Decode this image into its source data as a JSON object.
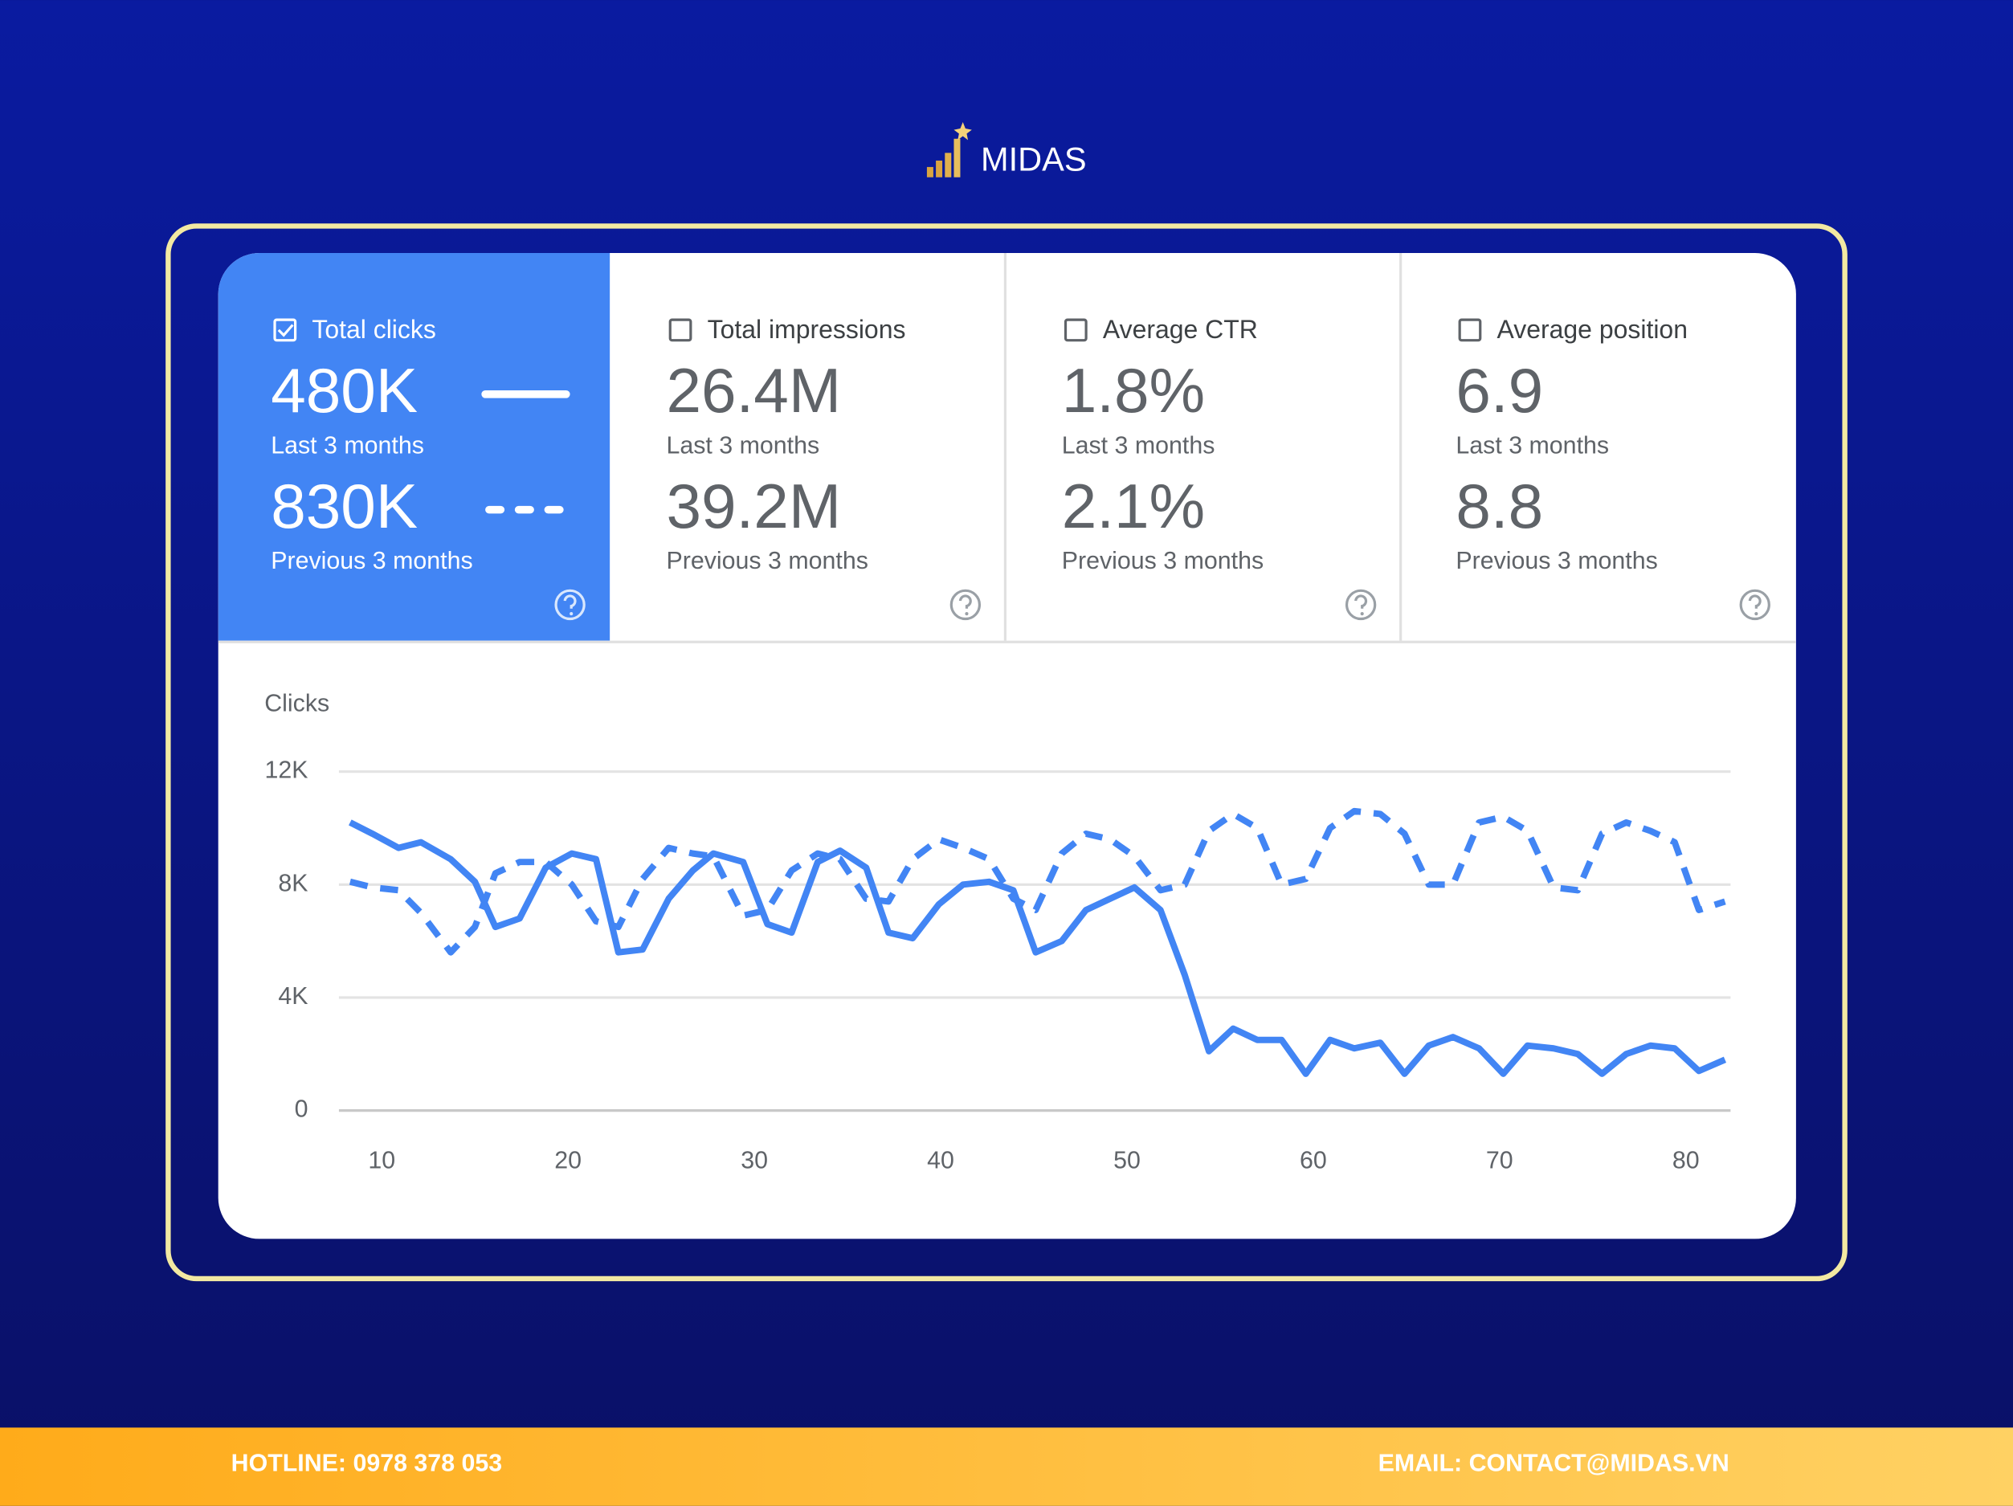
{
  "brand": "MIDAS",
  "cards": [
    {
      "label": "Total clicks",
      "checked": true,
      "current": "480K",
      "current_period": "Last 3 months",
      "previous": "830K",
      "previous_period": "Previous 3 months"
    },
    {
      "label": "Total impressions",
      "checked": false,
      "current": "26.4M",
      "current_period": "Last 3 months",
      "previous": "39.2M",
      "previous_period": "Previous 3 months"
    },
    {
      "label": "Average CTR",
      "checked": false,
      "current": "1.8%",
      "current_period": "Last 3 months",
      "previous": "2.1%",
      "previous_period": "Previous 3 months"
    },
    {
      "label": "Average position",
      "checked": false,
      "current": "6.9",
      "current_period": "Last 3 months",
      "previous": "8.8",
      "previous_period": "Previous 3 months"
    }
  ],
  "chart_data": {
    "type": "line",
    "y_label": "Clicks",
    "x": [
      8.3,
      9.5,
      10.9,
      12.1,
      13.7,
      15.0,
      16.1,
      17.4,
      18.8,
      20.2,
      21.5,
      22.7,
      24.0,
      25.4,
      26.7,
      27.8,
      29.4,
      30.7,
      32.0,
      33.4,
      34.6,
      36.0,
      37.2,
      38.5,
      39.9,
      41.2,
      42.6,
      43.9,
      45.1,
      46.5,
      47.8,
      49.1,
      50.4,
      51.8,
      53.1,
      54.4,
      55.7,
      57.0,
      58.3,
      59.6,
      60.9,
      62.2,
      63.6,
      64.9,
      66.2,
      67.5,
      68.9,
      70.2,
      71.5,
      72.9,
      74.2,
      75.5,
      76.8,
      78.1,
      79.4,
      80.7,
      82.1
    ],
    "series": [
      {
        "color": "#4285f4",
        "dashed": false,
        "values": [
          10200,
          9800,
          9300,
          9500,
          8900,
          8100,
          6500,
          6800,
          8600,
          9100,
          8900,
          5600,
          5700,
          7500,
          8500,
          9100,
          8800,
          6600,
          6300,
          8800,
          9200,
          8600,
          6300,
          6100,
          7300,
          8000,
          8100,
          7800,
          5600,
          6000,
          7100,
          7500,
          7900,
          7100,
          4800,
          2100,
          2900,
          2500,
          2500,
          1300,
          2500,
          2200,
          2400,
          1300,
          2300,
          2600,
          2200,
          1300,
          2300,
          2200,
          2000,
          1300,
          2000,
          2300,
          2200,
          1400,
          1800
        ]
      },
      {
        "color": "#4285f4",
        "dashed": true,
        "values": [
          8100,
          7900,
          7800,
          7000,
          5600,
          6500,
          8400,
          8800,
          8800,
          8000,
          6700,
          6500,
          8200,
          9300,
          9100,
          9000,
          6900,
          7100,
          8500,
          9100,
          8900,
          7500,
          7400,
          8900,
          9600,
          9300,
          8900,
          7500,
          7100,
          9100,
          9800,
          9600,
          9000,
          7800,
          8000,
          9900,
          10500,
          10000,
          8000,
          8200,
          10000,
          10600,
          10500,
          9800,
          8000,
          8000,
          10200,
          10400,
          9900,
          7900,
          7800,
          9800,
          10200,
          9900,
          9500,
          7100,
          7400
        ]
      }
    ],
    "xlim": [
      7.7,
      82.4
    ],
    "xticks": [
      10,
      20,
      30,
      40,
      50,
      60,
      70,
      80
    ],
    "ylim": [
      0,
      12000
    ],
    "yticks": [
      0,
      {
        "value": 4000,
        "label": "4K"
      },
      {
        "value": 8000,
        "label": "8K"
      },
      {
        "value": 12000,
        "label": "12K"
      }
    ],
    "grid": true
  },
  "footer": {
    "hotline": "HOTLINE: 0978 378 053",
    "email": "EMAIL: CONTACT@MIDAS.VN"
  }
}
